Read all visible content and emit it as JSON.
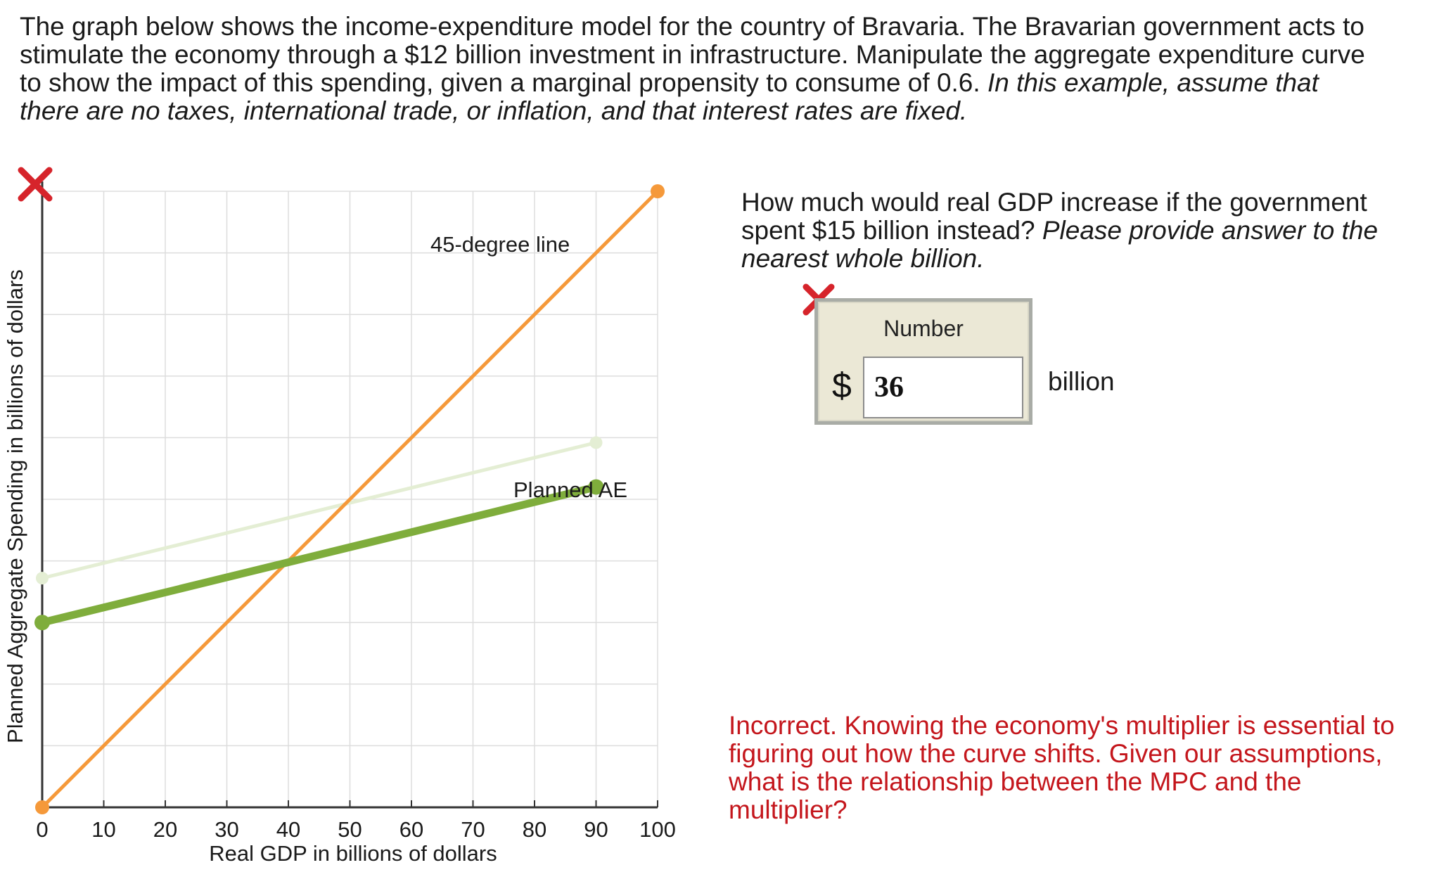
{
  "prompt": {
    "text_regular": "The graph below shows the income-expenditure model for the country of Bravaria. The Bravarian government acts to stimulate the economy through a $12 billion investment in infrastructure. Manipulate the aggregate expenditure curve to show the impact of this spending, given a marginal propensity to consume of 0.6.",
    "text_italic": "In this example, assume that there are no taxes, international trade, or inflation, and that interest rates are fixed."
  },
  "question": {
    "text_regular": "How much would real GDP increase if the government spent $15 billion instead?",
    "text_italic": "Please provide answer to the nearest whole billion."
  },
  "answer": {
    "label": "Number",
    "currency": "$",
    "value": "36",
    "unit": "billion"
  },
  "feedback": {
    "text": "Incorrect. Knowing the economy's multiplier is essential to figuring out how the curve shifts. Given our assumptions, what is the relationship between the MPC and the multiplier?"
  },
  "icons": {
    "incorrect_marker": "red-x-icon"
  },
  "colors": {
    "forty_five_line": "#f5993a",
    "ae_current": "#7fad3c",
    "ae_original": "#e4eed4",
    "grid": "#dddddd",
    "feedback": "#c4161c"
  },
  "chart_data": {
    "type": "line",
    "xlabel": "Real GDP in billions of dollars",
    "ylabel": "Planned Aggregate Spending in billions of dollars",
    "xlim": [
      0,
      100
    ],
    "ylim": [
      0,
      100
    ],
    "x_ticks": [
      0,
      10,
      20,
      30,
      40,
      50,
      60,
      70,
      80,
      90,
      100
    ],
    "grid": true,
    "series": [
      {
        "name": "45-degree line",
        "x": [
          0,
          100
        ],
        "y": [
          0,
          100
        ]
      },
      {
        "name": "Planned AE",
        "x": [
          0,
          90
        ],
        "y": [
          30,
          52
        ]
      },
      {
        "name": "",
        "x": [
          0,
          90
        ],
        "y": [
          37.2,
          59.2
        ]
      }
    ]
  }
}
